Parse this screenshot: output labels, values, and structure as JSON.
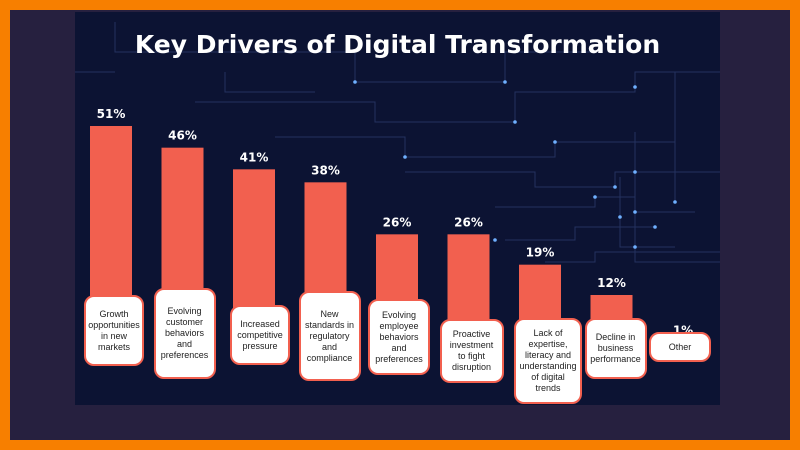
{
  "title": "Key Drivers of Digital Transformation",
  "colors": {
    "bar": "#f2604f",
    "background": "#0c1333",
    "frame": "#f77f00",
    "text": "#ffffff"
  },
  "chart_data": {
    "type": "bar",
    "title": "Key Drivers of Digital Transformation",
    "categories": [
      "Growth opportunities in new markets",
      "Evolving customer behaviors and preferences",
      "Increased competitive pressure",
      "New standards in regulatory and compliance",
      "Evolving employee behaviors and preferences",
      "Proactive investment to fight disruption",
      "Lack of expertise, literacy and understanding of digital trends",
      "Decline in business performance",
      "Other"
    ],
    "values": [
      51,
      46,
      41,
      38,
      26,
      26,
      19,
      12,
      1
    ],
    "value_labels": [
      "51%",
      "46%",
      "41%",
      "38%",
      "26%",
      "26%",
      "19%",
      "12%",
      "1%"
    ],
    "xlabel": "",
    "ylabel": "",
    "ylim": [
      0,
      51
    ],
    "grid": false,
    "legend": "none"
  }
}
